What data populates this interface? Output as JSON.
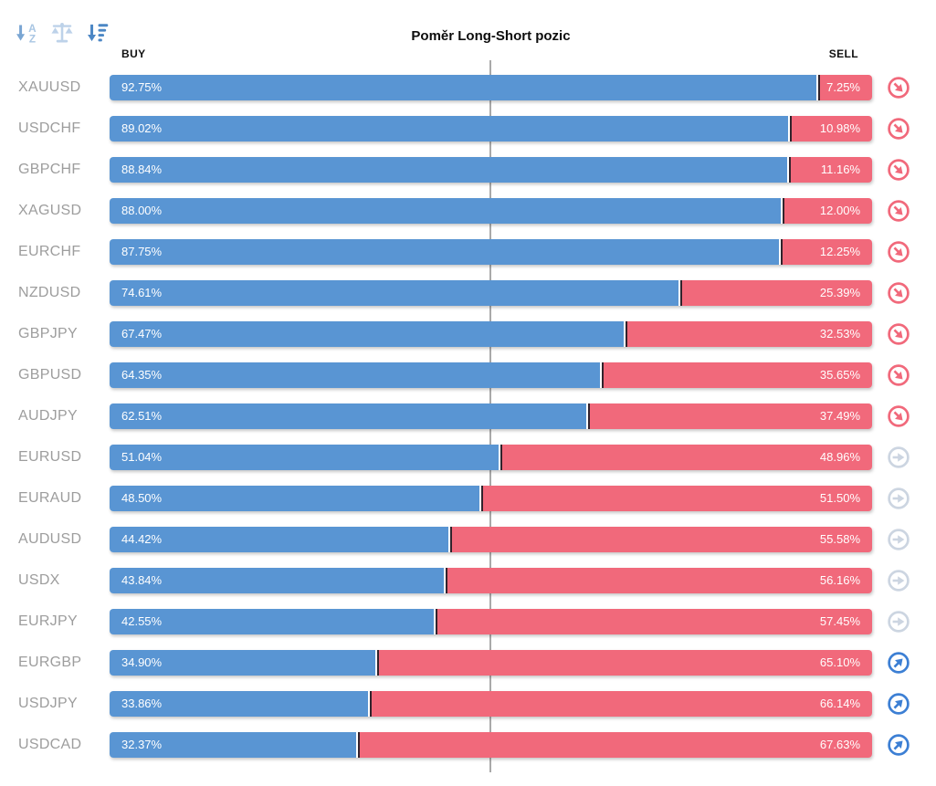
{
  "title": "Poměr Long-Short pozic",
  "columns": {
    "buy": "BUY",
    "sell": "SELL"
  },
  "toolbar": {
    "sort_alphabetical": "sort-alphabetical",
    "balance_scale": "balance-scale",
    "sort_amount_desc": "sort-amount-descending"
  },
  "colors": {
    "buy_bar": "#5995d3",
    "sell_bar": "#f1697b",
    "divider": "#31232c",
    "center_line": "#a9a9a9",
    "trend_down": "#f1697b",
    "trend_neutral": "#ccd5e1",
    "trend_up": "#3c7fd4",
    "symbol_text": "#9d9d9d"
  },
  "rows": [
    {
      "symbol": "XAUUSD",
      "buy_label": "92.75%",
      "sell_label": "7.25%",
      "trend": "down"
    },
    {
      "symbol": "USDCHF",
      "buy_label": "89.02%",
      "sell_label": "10.98%",
      "trend": "down"
    },
    {
      "symbol": "GBPCHF",
      "buy_label": "88.84%",
      "sell_label": "11.16%",
      "trend": "down"
    },
    {
      "symbol": "XAGUSD",
      "buy_label": "88.00%",
      "sell_label": "12.00%",
      "trend": "down"
    },
    {
      "symbol": "EURCHF",
      "buy_label": "87.75%",
      "sell_label": "12.25%",
      "trend": "down"
    },
    {
      "symbol": "NZDUSD",
      "buy_label": "74.61%",
      "sell_label": "25.39%",
      "trend": "down"
    },
    {
      "symbol": "GBPJPY",
      "buy_label": "67.47%",
      "sell_label": "32.53%",
      "trend": "down"
    },
    {
      "symbol": "GBPUSD",
      "buy_label": "64.35%",
      "sell_label": "35.65%",
      "trend": "down"
    },
    {
      "symbol": "AUDJPY",
      "buy_label": "62.51%",
      "sell_label": "37.49%",
      "trend": "down"
    },
    {
      "symbol": "EURUSD",
      "buy_label": "51.04%",
      "sell_label": "48.96%",
      "trend": "neutral"
    },
    {
      "symbol": "EURAUD",
      "buy_label": "48.50%",
      "sell_label": "51.50%",
      "trend": "neutral"
    },
    {
      "symbol": "AUDUSD",
      "buy_label": "44.42%",
      "sell_label": "55.58%",
      "trend": "neutral"
    },
    {
      "symbol": "USDX",
      "buy_label": "43.84%",
      "sell_label": "56.16%",
      "trend": "neutral"
    },
    {
      "symbol": "EURJPY",
      "buy_label": "42.55%",
      "sell_label": "57.45%",
      "trend": "neutral"
    },
    {
      "symbol": "EURGBP",
      "buy_label": "34.90%",
      "sell_label": "65.10%",
      "trend": "up"
    },
    {
      "symbol": "USDJPY",
      "buy_label": "33.86%",
      "sell_label": "66.14%",
      "trend": "up"
    },
    {
      "symbol": "USDCAD",
      "buy_label": "32.37%",
      "sell_label": "67.63%",
      "trend": "up"
    }
  ],
  "chart_data": {
    "type": "bar",
    "orientation": "horizontal",
    "stacked": true,
    "title": "Poměr Long-Short pozic",
    "categories": [
      "XAUUSD",
      "USDCHF",
      "GBPCHF",
      "XAGUSD",
      "EURCHF",
      "NZDUSD",
      "GBPJPY",
      "GBPUSD",
      "AUDJPY",
      "EURUSD",
      "EURAUD",
      "AUDUSD",
      "USDX",
      "EURJPY",
      "EURGBP",
      "USDJPY",
      "USDCAD"
    ],
    "series": [
      {
        "name": "BUY",
        "color": "#5995d3",
        "values": [
          92.75,
          89.02,
          88.84,
          88.0,
          87.75,
          74.61,
          67.47,
          64.35,
          62.51,
          51.04,
          48.5,
          44.42,
          43.84,
          42.55,
          34.9,
          33.86,
          32.37
        ]
      },
      {
        "name": "SELL",
        "color": "#f1697b",
        "values": [
          7.25,
          10.98,
          11.16,
          12.0,
          12.25,
          25.39,
          32.53,
          35.65,
          37.49,
          48.96,
          51.5,
          55.58,
          56.16,
          57.45,
          65.1,
          66.14,
          67.63
        ]
      }
    ],
    "xlim": [
      0,
      100
    ],
    "grid": false,
    "legend_position": "top",
    "annotations": [
      "center 50% reference line drawn vertically behind bars",
      "trend indicator per row: down-arrow (red) rows 1-9, right-arrow (gray) rows 10-14, up-arrow (blue) rows 15-17"
    ]
  }
}
